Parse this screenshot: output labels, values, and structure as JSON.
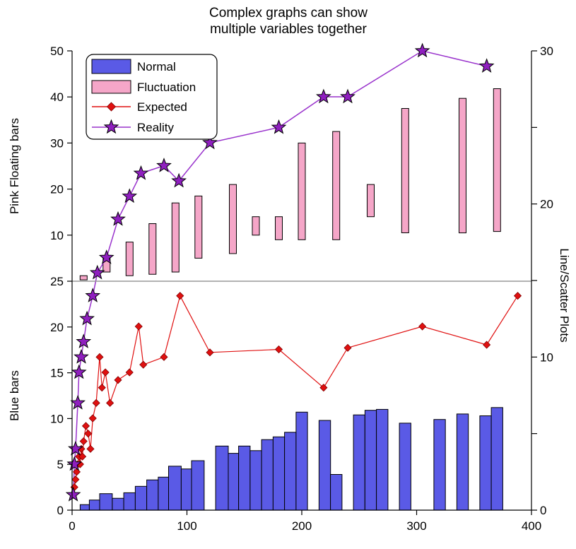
{
  "chart_data": {
    "type": "bar",
    "title": [
      "Complex graphs can show",
      "multiple variables together"
    ],
    "axes": {
      "x": {
        "range": [
          0,
          400
        ],
        "ticks": [
          0,
          100,
          200,
          300,
          400
        ]
      },
      "y_top": {
        "label": "Pink Floating bars",
        "range": [
          0,
          50
        ],
        "ticks": [
          10,
          20,
          30,
          40,
          50
        ]
      },
      "y_bottom": {
        "label": "Blue bars",
        "range": [
          0,
          25
        ],
        "ticks": [
          0,
          5,
          10,
          15,
          20,
          25
        ]
      },
      "y_right": {
        "label": "Line/Scatter Plots",
        "range": [
          0,
          30
        ],
        "ticks": [
          0,
          10,
          20,
          30
        ],
        "minor_ticks": [
          5,
          15,
          25
        ]
      }
    },
    "legend": {
      "position": "top-left",
      "entries": [
        "Normal",
        "Fluctuation",
        "Expected",
        "Reality"
      ]
    },
    "colors": {
      "normal": "#5a5ae6",
      "fluctuation": "#f5a6c8",
      "expected": "#e01010",
      "reality_line": "#9932cc",
      "reality_marker": "#8f1fbf",
      "divider": "#999999"
    },
    "series": [
      {
        "name": "Normal",
        "kind": "bar",
        "axis": "y_bottom",
        "bars": [
          {
            "x0": 7,
            "x1": 15,
            "v": 0.6
          },
          {
            "x0": 15,
            "x1": 24,
            "v": 1.1
          },
          {
            "x0": 24,
            "x1": 35,
            "v": 1.8
          },
          {
            "x0": 35,
            "x1": 45,
            "v": 1.3
          },
          {
            "x0": 45,
            "x1": 55,
            "v": 1.9
          },
          {
            "x0": 55,
            "x1": 65,
            "v": 2.6
          },
          {
            "x0": 65,
            "x1": 75,
            "v": 3.3
          },
          {
            "x0": 75,
            "x1": 84,
            "v": 3.6
          },
          {
            "x0": 84,
            "x1": 95,
            "v": 4.8
          },
          {
            "x0": 95,
            "x1": 104,
            "v": 4.5
          },
          {
            "x0": 104,
            "x1": 115,
            "v": 5.4
          },
          {
            "x0": 125,
            "x1": 136,
            "v": 7.0
          },
          {
            "x0": 136,
            "x1": 145,
            "v": 6.2
          },
          {
            "x0": 145,
            "x1": 155,
            "v": 7.0
          },
          {
            "x0": 155,
            "x1": 165,
            "v": 6.5
          },
          {
            "x0": 165,
            "x1": 175,
            "v": 7.7
          },
          {
            "x0": 175,
            "x1": 185,
            "v": 8.0
          },
          {
            "x0": 185,
            "x1": 195,
            "v": 8.5
          },
          {
            "x0": 195,
            "x1": 205,
            "v": 10.7
          },
          {
            "x0": 215,
            "x1": 225,
            "v": 9.8
          },
          {
            "x0": 225,
            "x1": 235,
            "v": 3.9
          },
          {
            "x0": 245,
            "x1": 255,
            "v": 10.4
          },
          {
            "x0": 255,
            "x1": 265,
            "v": 10.9
          },
          {
            "x0": 265,
            "x1": 275,
            "v": 11.0
          },
          {
            "x0": 285,
            "x1": 295,
            "v": 9.5
          },
          {
            "x0": 315,
            "x1": 325,
            "v": 9.9
          },
          {
            "x0": 335,
            "x1": 345,
            "v": 10.5
          },
          {
            "x0": 355,
            "x1": 365,
            "v": 10.3
          },
          {
            "x0": 365,
            "x1": 375,
            "v": 11.2
          }
        ]
      },
      {
        "name": "Fluctuation",
        "kind": "floating_bar",
        "axis": "y_top",
        "bars": [
          {
            "x": 10,
            "low": 0.3,
            "high": 1.2
          },
          {
            "x": 30,
            "low": 2.0,
            "high": 5.0
          },
          {
            "x": 50,
            "low": 1.2,
            "high": 8.5
          },
          {
            "x": 70,
            "low": 1.5,
            "high": 12.5
          },
          {
            "x": 90,
            "low": 2.0,
            "high": 17.0
          },
          {
            "x": 110,
            "low": 5.0,
            "high": 18.5
          },
          {
            "x": 140,
            "low": 6.0,
            "high": 21.0
          },
          {
            "x": 160,
            "low": 10.0,
            "high": 14.0
          },
          {
            "x": 180,
            "low": 9.0,
            "high": 14.0
          },
          {
            "x": 200,
            "low": 9.0,
            "high": 30.0
          },
          {
            "x": 230,
            "low": 9.0,
            "high": 32.5
          },
          {
            "x": 260,
            "low": 14.0,
            "high": 21.0
          },
          {
            "x": 290,
            "low": 10.5,
            "high": 37.5
          },
          {
            "x": 340,
            "low": 10.5,
            "high": 39.7
          },
          {
            "x": 370,
            "low": 10.8,
            "high": 41.8
          }
        ]
      },
      {
        "name": "Expected",
        "kind": "line",
        "axis": "y_right",
        "x": [
          1,
          2,
          3,
          4,
          5,
          6,
          7,
          8,
          9,
          10,
          12,
          14,
          16,
          18,
          21,
          24,
          26,
          29,
          33,
          40,
          50,
          58,
          62,
          80,
          94,
          120,
          180,
          219,
          240,
          305,
          361,
          388
        ],
        "y": [
          1.0,
          1.5,
          2.0,
          2.5,
          3.0,
          3.5,
          3.0,
          4.0,
          3.5,
          4.5,
          5.5,
          5.0,
          4.0,
          6.0,
          7.0,
          10.0,
          8.0,
          9.0,
          7.0,
          8.5,
          9.0,
          12.0,
          9.5,
          10.0,
          14.0,
          10.3,
          10.5,
          8.0,
          10.6,
          12.0,
          10.8,
          14.0
        ]
      },
      {
        "name": "Reality",
        "kind": "line",
        "axis": "y_right",
        "x": [
          1,
          2,
          3,
          5,
          6,
          8,
          10,
          13,
          18,
          22,
          30,
          40,
          50,
          60,
          80,
          93,
          120,
          180,
          219,
          240,
          305,
          361
        ],
        "y": [
          1.0,
          3.0,
          4.0,
          7.0,
          9.0,
          10.0,
          11.0,
          12.5,
          14.0,
          15.5,
          16.5,
          19.0,
          20.5,
          22.0,
          22.5,
          21.5,
          24.0,
          25.0,
          27.0,
          27.0,
          30.0,
          29.0
        ]
      }
    ]
  }
}
